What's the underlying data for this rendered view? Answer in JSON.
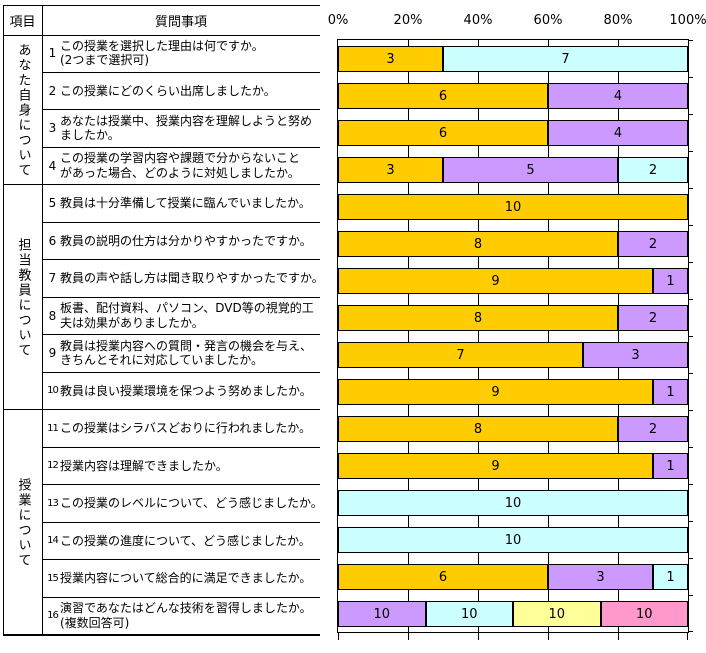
{
  "table": {
    "header": {
      "category": "項目",
      "question": "質問事項"
    },
    "groups": [
      {
        "label": "あなた自身について",
        "rows": 4
      },
      {
        "label": "担当教員について",
        "rows": 6
      },
      {
        "label": "授業について",
        "rows": 6
      }
    ],
    "questions": [
      {
        "num": "1",
        "lines": [
          "この授業を選択した理由は何ですか。",
          "(2つまで選択可)"
        ]
      },
      {
        "num": "2",
        "lines": [
          "この授業にどのくらい出席しましたか。"
        ]
      },
      {
        "num": "3",
        "lines": [
          "あなたは授業中、授業内容を理解しようと努め",
          "ましたか。"
        ]
      },
      {
        "num": "4",
        "lines": [
          "この授業の学習内容や課題で分からないこと",
          "があった場合、どのように対処しましたか。"
        ]
      },
      {
        "num": "5",
        "lines": [
          "教員は十分準備して授業に臨んでいましたか。"
        ]
      },
      {
        "num": "6",
        "lines": [
          "教員の説明の仕方は分かりやすかったですか。"
        ]
      },
      {
        "num": "7",
        "lines": [
          "教員の声や話し方は聞き取りやすかったですか。"
        ]
      },
      {
        "num": "8",
        "lines": [
          "板書、配付資料、パソコン、DVD等の視覚的工",
          "夫は効果がありましたか。"
        ]
      },
      {
        "num": "9",
        "lines": [
          "教員は授業内容への質問・発言の機会を与え、",
          "きちんとそれに対応していましたか。"
        ]
      },
      {
        "num": "10",
        "lines": [
          "教員は良い授業環境を保つよう努めましたか。"
        ]
      },
      {
        "num": "11",
        "lines": [
          "この授業はシラバスどおりに行われましたか。"
        ]
      },
      {
        "num": "12",
        "lines": [
          "授業内容は理解できましたか。"
        ]
      },
      {
        "num": "13",
        "lines": [
          "この授業のレベルについて、どう感じましたか。"
        ]
      },
      {
        "num": "14",
        "lines": [
          "この授業の進度について、どう感じましたか。"
        ]
      },
      {
        "num": "15",
        "lines": [
          "授業内容について総合的に満足できましたか。"
        ]
      },
      {
        "num": "16",
        "lines": [
          "演習であなたはどんな技術を習得しましたか。",
          "(複数回答可)"
        ]
      }
    ]
  },
  "chart_data": {
    "type": "bar",
    "subtype": "stacked-100pct",
    "orientation": "horizontal",
    "title": "",
    "xlabel": "",
    "ylabel": "",
    "xlim": [
      0,
      100
    ],
    "x_tick_labels": [
      "0%",
      "20%",
      "40%",
      "60%",
      "80%",
      "100%"
    ],
    "grid": true,
    "legend": "none",
    "palette": {
      "gold": "#FFCC00",
      "lavender": "#CC99FF",
      "cyan": "#CCFFFF",
      "yellow": "#FFFF99",
      "pink": "#FF99CC"
    },
    "rows": [
      {
        "q": "1",
        "segments": [
          {
            "color": "gold",
            "value": 3
          },
          {
            "color": "cyan",
            "value": 7
          }
        ]
      },
      {
        "q": "2",
        "segments": [
          {
            "color": "gold",
            "value": 6
          },
          {
            "color": "lavender",
            "value": 4
          }
        ]
      },
      {
        "q": "3",
        "segments": [
          {
            "color": "gold",
            "value": 6
          },
          {
            "color": "lavender",
            "value": 4
          }
        ]
      },
      {
        "q": "4",
        "segments": [
          {
            "color": "gold",
            "value": 3
          },
          {
            "color": "lavender",
            "value": 5
          },
          {
            "color": "cyan",
            "value": 2
          }
        ]
      },
      {
        "q": "5",
        "segments": [
          {
            "color": "gold",
            "value": 10
          }
        ]
      },
      {
        "q": "6",
        "segments": [
          {
            "color": "gold",
            "value": 8
          },
          {
            "color": "lavender",
            "value": 2
          }
        ]
      },
      {
        "q": "7",
        "segments": [
          {
            "color": "gold",
            "value": 9
          },
          {
            "color": "lavender",
            "value": 1
          }
        ]
      },
      {
        "q": "8",
        "segments": [
          {
            "color": "gold",
            "value": 8
          },
          {
            "color": "lavender",
            "value": 2
          }
        ]
      },
      {
        "q": "9",
        "segments": [
          {
            "color": "gold",
            "value": 7
          },
          {
            "color": "lavender",
            "value": 3
          }
        ]
      },
      {
        "q": "10",
        "segments": [
          {
            "color": "gold",
            "value": 9
          },
          {
            "color": "lavender",
            "value": 1
          }
        ]
      },
      {
        "q": "11",
        "segments": [
          {
            "color": "gold",
            "value": 8
          },
          {
            "color": "lavender",
            "value": 2
          }
        ]
      },
      {
        "q": "12",
        "segments": [
          {
            "color": "gold",
            "value": 9
          },
          {
            "color": "lavender",
            "value": 1
          }
        ]
      },
      {
        "q": "13",
        "segments": [
          {
            "color": "cyan",
            "value": 10
          }
        ]
      },
      {
        "q": "14",
        "segments": [
          {
            "color": "cyan",
            "value": 10
          }
        ]
      },
      {
        "q": "15",
        "segments": [
          {
            "color": "gold",
            "value": 6
          },
          {
            "color": "lavender",
            "value": 3
          },
          {
            "color": "cyan",
            "value": 1
          }
        ]
      },
      {
        "q": "16",
        "segments": [
          {
            "color": "lavender",
            "value": 10
          },
          {
            "color": "cyan",
            "value": 10
          },
          {
            "color": "yellow",
            "value": 10
          },
          {
            "color": "pink",
            "value": 10
          }
        ]
      }
    ]
  }
}
